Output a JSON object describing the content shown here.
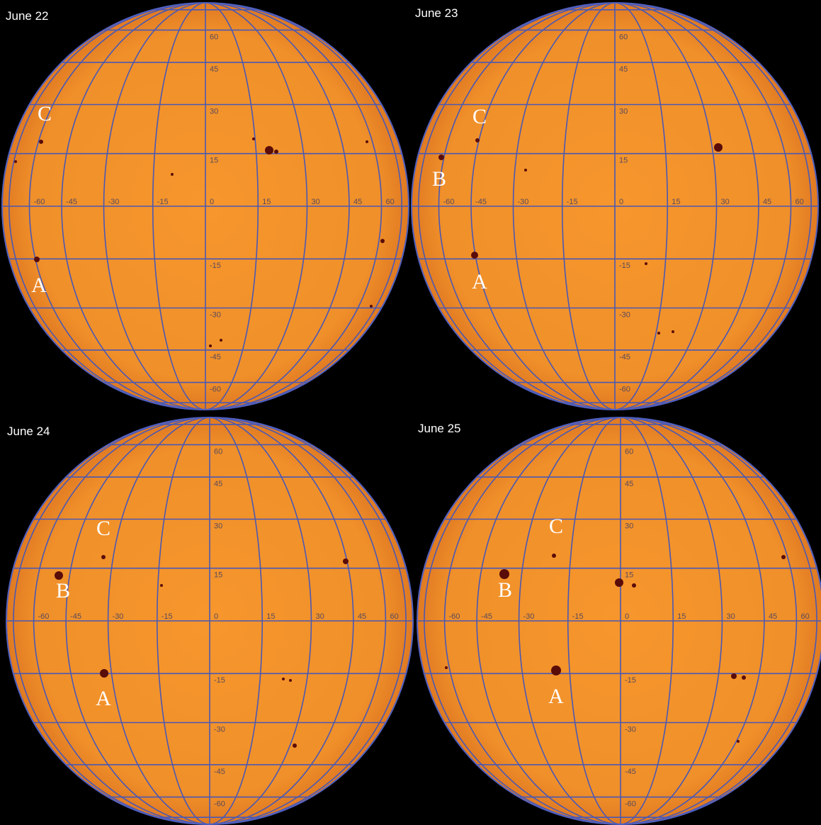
{
  "panels": [
    {
      "date": "June 22",
      "lat_labels": [
        "60",
        "45",
        "30",
        "15",
        "-15",
        "-30",
        "-45",
        "-60"
      ],
      "lon_labels": [
        "-60",
        "-45",
        "-30",
        "-15",
        "0",
        "15",
        "30",
        "45",
        "60"
      ],
      "spots": [
        "C",
        "A"
      ]
    },
    {
      "date": "June 23",
      "lat_labels": [
        "60",
        "45",
        "30",
        "15",
        "-15",
        "-30",
        "-45",
        "-60"
      ],
      "lon_labels": [
        "-60",
        "-45",
        "-30",
        "-15",
        "0",
        "15",
        "30",
        "45",
        "60"
      ],
      "spots": [
        "C",
        "B",
        "A"
      ]
    },
    {
      "date": "June 24",
      "lat_labels": [
        "60",
        "45",
        "30",
        "15",
        "-15",
        "-30",
        "-45",
        "-60"
      ],
      "lon_labels": [
        "-60",
        "-45",
        "-30",
        "-15",
        "0",
        "15",
        "30",
        "45",
        "60"
      ],
      "spots": [
        "C",
        "B",
        "A"
      ]
    },
    {
      "date": "June 25",
      "lat_labels": [
        "60",
        "45",
        "30",
        "15",
        "-15",
        "-30",
        "-45",
        "-60"
      ],
      "lon_labels": [
        "-60",
        "-45",
        "-30",
        "-15",
        "0",
        "15",
        "30",
        "45",
        "60"
      ],
      "spots": [
        "C",
        "B",
        "A"
      ]
    }
  ]
}
